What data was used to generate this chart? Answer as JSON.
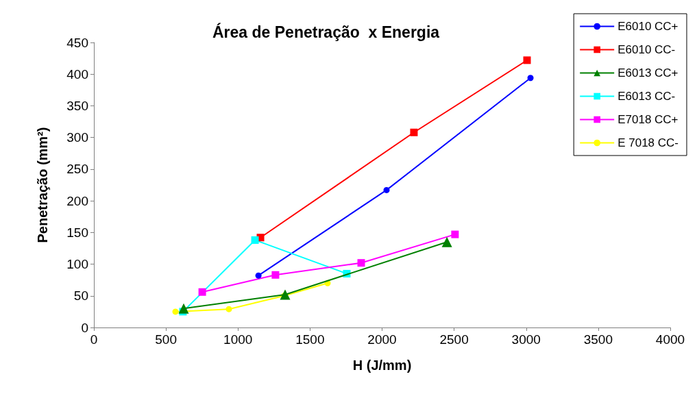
{
  "chart_data": {
    "type": "line",
    "title": "Área de Penetração  x Energia",
    "xlabel": "H (J/mm)",
    "ylabel": "Penetração (mm²)",
    "xlim": [
      0,
      4000
    ],
    "xticks": [
      0,
      500,
      1000,
      1500,
      2000,
      2500,
      3000,
      3500,
      4000
    ],
    "ylim": [
      0,
      450
    ],
    "yticks": [
      0,
      50,
      100,
      150,
      200,
      250,
      300,
      350,
      400,
      450
    ],
    "grid": false,
    "legend": "top right",
    "series": [
      {
        "name": "E6010 CC+",
        "color": "#0000ff",
        "marker": "circle",
        "x": [
          1142,
          2031,
          3030
        ],
        "values": [
          82,
          217,
          394
        ]
      },
      {
        "name": "E6010 CC-",
        "color": "#ff0000",
        "marker": "square",
        "x": [
          1156,
          2221,
          3006
        ],
        "values": [
          142,
          308,
          422
        ]
      },
      {
        "name": "E6013 CC+",
        "color": "#008000",
        "marker": "triangle",
        "x": [
          623,
          1327,
          2450
        ],
        "values": [
          30,
          52,
          135
        ]
      },
      {
        "name": "E6013 CC-",
        "color": "#00ffff",
        "marker": "square",
        "x": [
          618,
          1118,
          1755
        ],
        "values": [
          25,
          138,
          85
        ]
      },
      {
        "name": "E7018 CC+",
        "color": "#ff00ff",
        "marker": "square",
        "x": [
          752,
          1260,
          1855,
          2506
        ],
        "values": [
          56,
          83,
          102,
          147
        ]
      },
      {
        "name": "E 7018 CC-",
        "color": "#ffff00",
        "marker": "circle",
        "x": [
          566,
          937,
          1320,
          1622
        ],
        "values": [
          25,
          29,
          50,
          70
        ]
      }
    ]
  }
}
